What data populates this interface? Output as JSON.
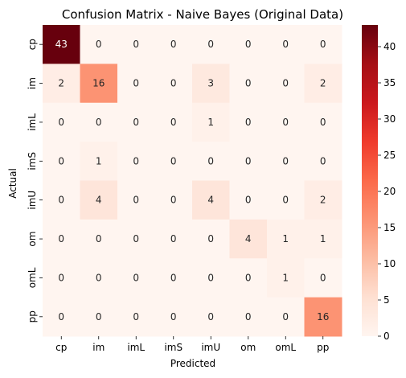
{
  "chart_data": {
    "type": "heatmap",
    "title": "Confusion Matrix - Naive Bayes (Original Data)",
    "xlabel": "Predicted",
    "ylabel": "Actual",
    "x_categories": [
      "cp",
      "im",
      "imL",
      "imS",
      "imU",
      "om",
      "omL",
      "pp"
    ],
    "y_categories": [
      "cp",
      "im",
      "imL",
      "imS",
      "imU",
      "om",
      "omL",
      "pp"
    ],
    "values": [
      [
        43,
        0,
        0,
        0,
        0,
        0,
        0,
        0
      ],
      [
        2,
        16,
        0,
        0,
        3,
        0,
        0,
        2
      ],
      [
        0,
        0,
        0,
        0,
        1,
        0,
        0,
        0
      ],
      [
        0,
        1,
        0,
        0,
        0,
        0,
        0,
        0
      ],
      [
        0,
        4,
        0,
        0,
        4,
        0,
        0,
        2
      ],
      [
        0,
        0,
        0,
        0,
        0,
        4,
        1,
        1
      ],
      [
        0,
        0,
        0,
        0,
        0,
        0,
        1,
        0
      ],
      [
        0,
        0,
        0,
        0,
        0,
        0,
        0,
        16
      ]
    ],
    "colormap": "Reds",
    "color_range": [
      0,
      43
    ],
    "colorbar_ticks": [
      0,
      5,
      10,
      15,
      20,
      25,
      30,
      35,
      40
    ],
    "grid": false,
    "legend": "colorbar-right"
  }
}
